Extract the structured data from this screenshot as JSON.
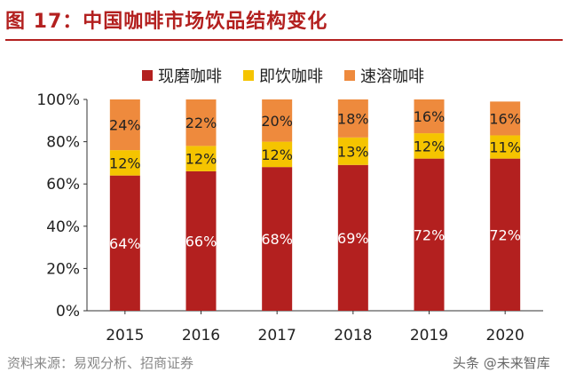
{
  "figure": {
    "title": "图 17：中国咖啡市场饮品结构变化",
    "source": "资料来源：易观分析、招商证券",
    "watermark": "头条 @未来智库"
  },
  "colors": {
    "title": "#b3201f",
    "series": [
      "#b3201f",
      "#f5c400",
      "#ee8a3d"
    ]
  },
  "chart_data": {
    "type": "bar",
    "stacked": true,
    "categories": [
      "2015",
      "2016",
      "2017",
      "2018",
      "2019",
      "2020"
    ],
    "series": [
      {
        "name": "现磨咖啡",
        "values": [
          64,
          66,
          68,
          69,
          72,
          72
        ],
        "labels": [
          "64%",
          "66%",
          "68%",
          "69%",
          "72%",
          "72%"
        ]
      },
      {
        "name": "即饮咖啡",
        "values": [
          12,
          12,
          12,
          13,
          12,
          11
        ],
        "labels": [
          "12%",
          "12%",
          "12%",
          "13%",
          "12%",
          "11%"
        ]
      },
      {
        "name": "速溶咖啡",
        "values": [
          24,
          22,
          20,
          18,
          16,
          16
        ],
        "labels": [
          "24%",
          "22%",
          "20%",
          "18%",
          "16%",
          "16%"
        ]
      }
    ],
    "yticks": [
      "0%",
      "20%",
      "40%",
      "60%",
      "80%",
      "100%"
    ],
    "ylim": [
      0,
      100
    ],
    "legend_position": "top",
    "grid": false
  }
}
